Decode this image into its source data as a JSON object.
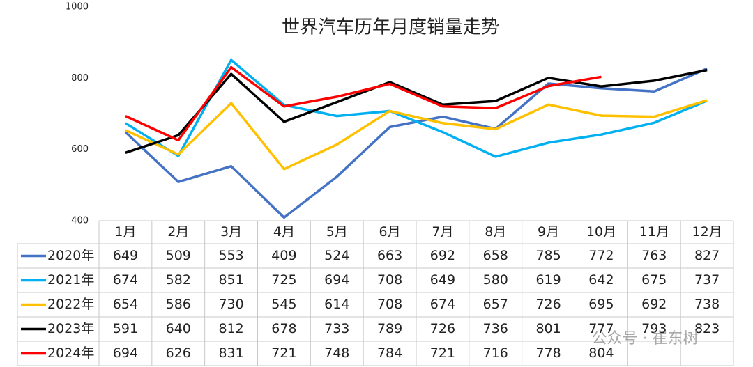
{
  "chart_data": {
    "type": "line",
    "title": "世界汽车历年月度销量走势",
    "categories": [
      "1月",
      "2月",
      "3月",
      "4月",
      "5月",
      "6月",
      "7月",
      "8月",
      "9月",
      "10月",
      "11月",
      "12月"
    ],
    "series": [
      {
        "name": "2020年",
        "color": "#4472c4",
        "values": [
          649,
          509,
          553,
          409,
          524,
          663,
          692,
          658,
          785,
          772,
          763,
          827
        ]
      },
      {
        "name": "2021年",
        "color": "#00b0f0",
        "values": [
          674,
          582,
          851,
          725,
          694,
          708,
          649,
          580,
          619,
          642,
          675,
          737
        ]
      },
      {
        "name": "2022年",
        "color": "#ffc000",
        "values": [
          654,
          586,
          730,
          545,
          614,
          708,
          674,
          657,
          726,
          695,
          692,
          738
        ]
      },
      {
        "name": "2023年",
        "color": "#000000",
        "values": [
          591,
          640,
          812,
          678,
          733,
          789,
          726,
          736,
          801,
          777,
          793,
          823
        ]
      },
      {
        "name": "2024年",
        "color": "#ff0000",
        "values": [
          694,
          626,
          831,
          721,
          748,
          784,
          721,
          716,
          778,
          804,
          null,
          null
        ]
      }
    ],
    "ylim": [
      400,
      1000
    ],
    "yticks": [
      400,
      600,
      800,
      1000
    ],
    "grid": false,
    "watermark": "公众号 · 崔东树"
  }
}
